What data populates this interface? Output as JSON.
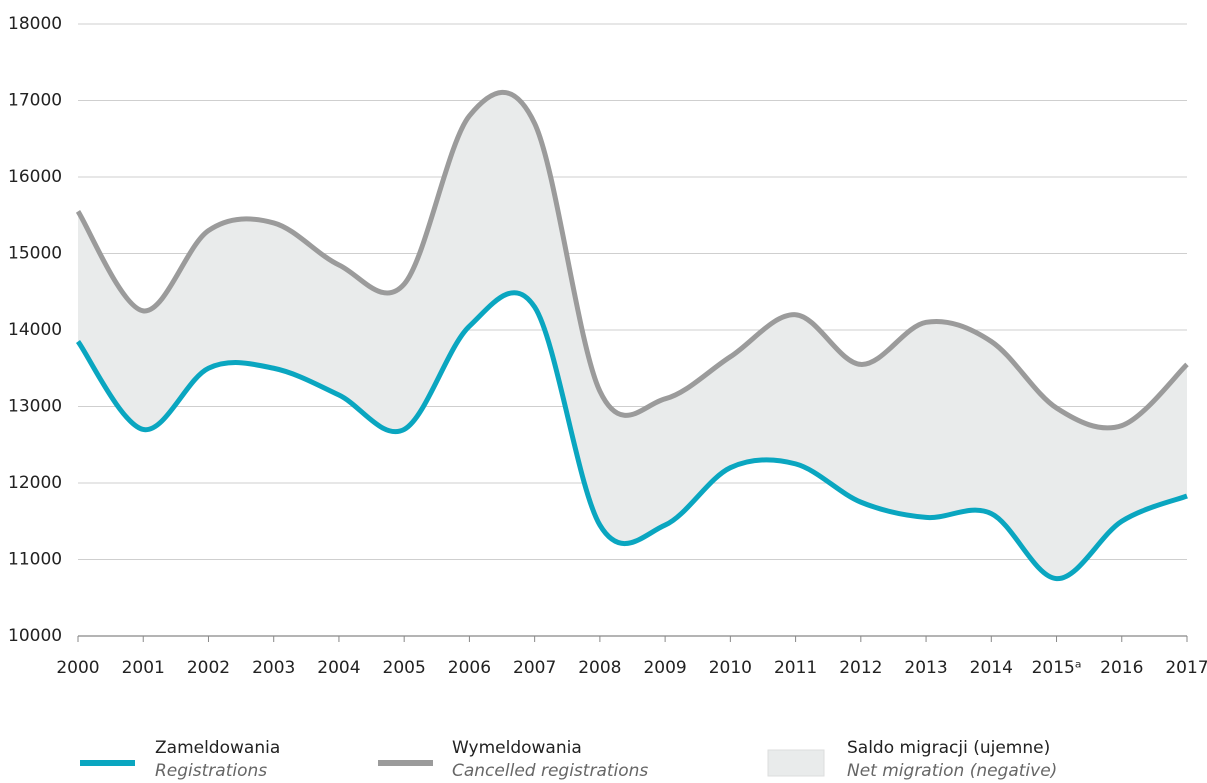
{
  "chart_data": {
    "type": "line",
    "categories": [
      "2000",
      "2001",
      "2002",
      "2003",
      "2004",
      "2005",
      "2006",
      "2007",
      "2008",
      "2009",
      "2010",
      "2011",
      "2012",
      "2013",
      "2014",
      "2015ᵃ",
      "2016",
      "2017"
    ],
    "series": [
      {
        "name": "Zameldowania",
        "name_en": "Registrations",
        "color": "#0aa6c0",
        "values": [
          13850,
          12700,
          13500,
          13500,
          13150,
          12700,
          14050,
          14300,
          11450,
          11450,
          12200,
          12250,
          11750,
          11550,
          11600,
          10750,
          11500,
          11830
        ]
      },
      {
        "name": "Wymeldowania",
        "name_en": "Cancelled registrations",
        "color": "#9b9b9b",
        "values": [
          15550,
          14250,
          15300,
          15400,
          14850,
          14600,
          16800,
          16700,
          13200,
          13100,
          13650,
          14200,
          13550,
          14100,
          13850,
          12980,
          12750,
          13550
        ]
      }
    ],
    "area": {
      "name": "Saldo migracji (ujemne)",
      "name_en": "Net migration (negative)",
      "color": "#e9ebeb"
    },
    "ylim": [
      10000,
      18000
    ],
    "yticks": [
      10000,
      11000,
      12000,
      13000,
      14000,
      15000,
      16000,
      17000,
      18000
    ],
    "grid": true
  }
}
